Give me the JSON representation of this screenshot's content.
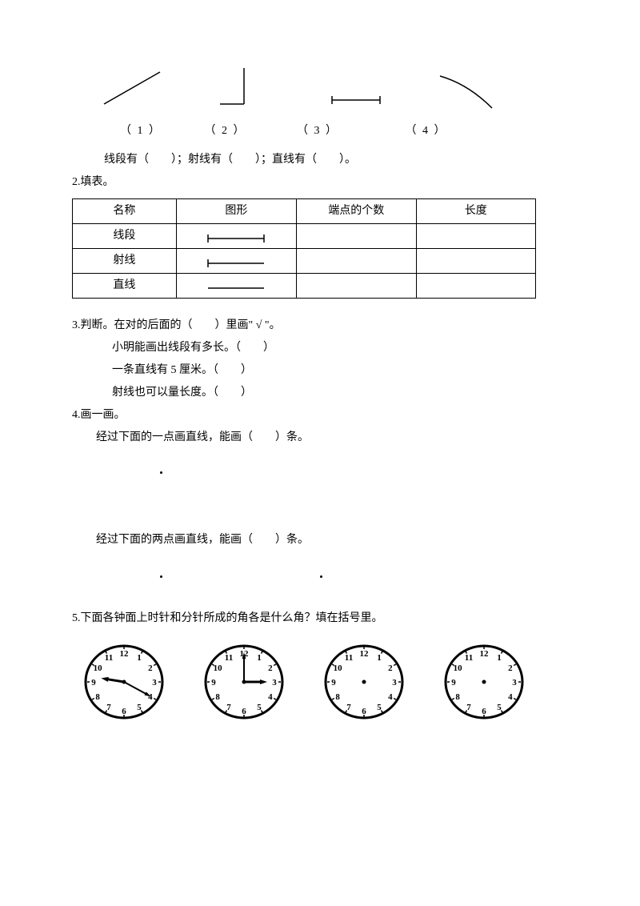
{
  "q1": {
    "labels": [
      "（ 1 ）",
      "（ 2 ）",
      "（ 3 ）",
      "（ 4 ）"
    ],
    "fill_line": "线段有（　　）；射线有（　　）；直线有（　　）。"
  },
  "q2": {
    "title": "2.填表。",
    "headers": [
      "名称",
      "图形",
      "端点的个数",
      "长度"
    ],
    "rows": [
      "线段",
      "射线",
      "直线"
    ]
  },
  "q3": {
    "title": "3.判断。在对的后面的（　　）里画\" √ \"。",
    "items": [
      "小明能画出线段有多长。（　　）",
      "一条直线有 5 厘米。（　　）",
      "射线也可以量长度。（　　）"
    ]
  },
  "q4": {
    "title": "4.画一画。",
    "line1": "经过下面的一点画直线，能画（　　）条。",
    "line2": "经过下面的两点画直线，能画（　　）条。"
  },
  "q5": {
    "title": "5.下面各钟面上时针和分针所成的角各是什么角？填在括号里。",
    "clocks": [
      {
        "hour": 9,
        "minute": 20
      },
      {
        "hour": 3,
        "minute": 0
      },
      {
        "hour": null,
        "minute": null
      },
      {
        "hour": null,
        "minute": null
      }
    ]
  },
  "style": {
    "stroke": "#000000",
    "background": "#ffffff",
    "font_size": 14
  }
}
